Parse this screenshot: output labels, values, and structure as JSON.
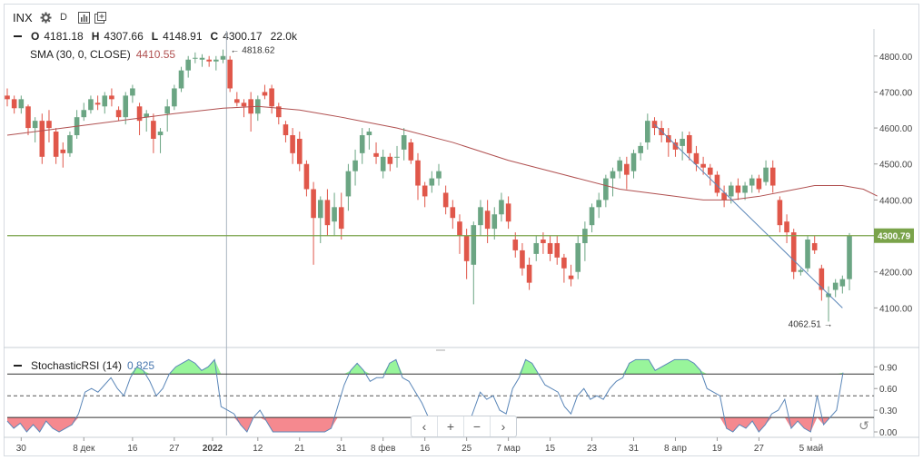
{
  "toolbar": {
    "symbol": "INX",
    "interval": "D",
    "settings_icon": "gear-icon",
    "indicators_icon": "bar-chart-icon",
    "compare_icon": "add-window-icon"
  },
  "ohlc": {
    "o_label": "O",
    "o_value": "4181.18",
    "h_label": "H",
    "h_value": "4307.66",
    "l_label": "L",
    "l_value": "4148.91",
    "c_label": "C",
    "c_value": "4300.17",
    "volume": "22.0k"
  },
  "sma_legend": {
    "label": "SMA (30, 0, CLOSE)",
    "value": "4410.55"
  },
  "stoch_legend": {
    "label": "StochasticRSI (14)",
    "value": "0.825"
  },
  "navigation": {
    "prev": "‹",
    "zoom_in": "+",
    "zoom_out": "−",
    "next": "›",
    "reset_icon": "reset-icon"
  },
  "colors": {
    "up": "#6ba583",
    "down": "#e0574a",
    "sma": "#b05050",
    "stoch_line": "#5a86b8",
    "overbought_fill": "#98f59b",
    "oversold_fill": "#f5898f",
    "price_line": "#7aa34a"
  },
  "chart_data": [
    {
      "type": "candlestick",
      "title": "INX",
      "x_tick_labels": [
        "30",
        "8 дек",
        "16",
        "27",
        "2022",
        "12",
        "21",
        "31",
        "8 фев",
        "16",
        "25",
        "7 мар",
        "15",
        "23",
        "31",
        "8 апр",
        "19",
        "27",
        "5 май"
      ],
      "y_tick_labels": [
        "4800.00",
        "4700.00",
        "4600.00",
        "4500.00",
        "4400.00",
        "4300.00",
        "4200.00",
        "4100.00"
      ],
      "ylim": [
        3990,
        4870
      ],
      "current_price_label": "4300.79",
      "annotations": [
        {
          "text": "4818.62",
          "kind": "high"
        },
        {
          "text": "4062.51",
          "kind": "low"
        }
      ],
      "candles": [
        [
          4690,
          4710,
          4660,
          4680
        ],
        [
          4680,
          4690,
          4640,
          4655
        ],
        [
          4655,
          4690,
          4640,
          4680
        ],
        [
          4660,
          4665,
          4580,
          4600
        ],
        [
          4600,
          4630,
          4560,
          4620
        ],
        [
          4620,
          4640,
          4500,
          4520
        ],
        [
          4620,
          4650,
          4560,
          4600
        ],
        [
          4590,
          4600,
          4500,
          4520
        ],
        [
          4540,
          4560,
          4490,
          4530
        ],
        [
          4530,
          4590,
          4520,
          4580
        ],
        [
          4580,
          4650,
          4570,
          4630
        ],
        [
          4630,
          4670,
          4620,
          4650
        ],
        [
          4650,
          4690,
          4640,
          4680
        ],
        [
          4670,
          4690,
          4650,
          4665
        ],
        [
          4660,
          4700,
          4640,
          4690
        ],
        [
          4690,
          4710,
          4660,
          4680
        ],
        [
          4650,
          4660,
          4620,
          4630
        ],
        [
          4630,
          4700,
          4610,
          4690
        ],
        [
          4690,
          4720,
          4670,
          4710
        ],
        [
          4660,
          4670,
          4580,
          4620
        ],
        [
          4630,
          4650,
          4590,
          4640
        ],
        [
          4620,
          4640,
          4530,
          4570
        ],
        [
          4580,
          4600,
          4530,
          4590
        ],
        [
          4640,
          4680,
          4590,
          4660
        ],
        [
          4660,
          4720,
          4650,
          4710
        ],
        [
          4710,
          4770,
          4700,
          4760
        ],
        [
          4760,
          4800,
          4740,
          4790
        ],
        [
          4795,
          4810,
          4780,
          4795
        ],
        [
          4790,
          4805,
          4770,
          4795
        ],
        [
          4790,
          4800,
          4770,
          4785
        ],
        [
          4785,
          4800,
          4760,
          4790
        ],
        [
          4790,
          4818,
          4780,
          4800
        ],
        [
          4790,
          4800,
          4700,
          4710
        ],
        [
          4680,
          4700,
          4660,
          4670
        ],
        [
          4670,
          4680,
          4630,
          4660
        ],
        [
          4680,
          4700,
          4590,
          4640
        ],
        [
          4640,
          4690,
          4620,
          4680
        ],
        [
          4700,
          4720,
          4680,
          4690
        ],
        [
          4710,
          4720,
          4640,
          4660
        ],
        [
          4660,
          4670,
          4610,
          4630
        ],
        [
          4610,
          4620,
          4560,
          4580
        ],
        [
          4580,
          4600,
          4500,
          4530
        ],
        [
          4570,
          4590,
          4480,
          4500
        ],
        [
          4500,
          4510,
          4410,
          4430
        ],
        [
          4430,
          4450,
          4220,
          4350
        ],
        [
          4350,
          4410,
          4280,
          4400
        ],
        [
          4400,
          4430,
          4300,
          4330
        ],
        [
          4340,
          4420,
          4300,
          4380
        ],
        [
          4380,
          4420,
          4290,
          4320
        ],
        [
          4410,
          4500,
          4370,
          4480
        ],
        [
          4480,
          4540,
          4440,
          4510
        ],
        [
          4530,
          4600,
          4500,
          4580
        ],
        [
          4580,
          4600,
          4540,
          4590
        ],
        [
          4530,
          4560,
          4500,
          4520
        ],
        [
          4480,
          4540,
          4460,
          4520
        ],
        [
          4520,
          4530,
          4480,
          4500
        ],
        [
          4520,
          4550,
          4490,
          4520
        ],
        [
          4540,
          4600,
          4510,
          4580
        ],
        [
          4560,
          4570,
          4500,
          4510
        ],
        [
          4510,
          4530,
          4400,
          4440
        ],
        [
          4440,
          4450,
          4380,
          4410
        ],
        [
          4440,
          4480,
          4420,
          4460
        ],
        [
          4460,
          4500,
          4440,
          4480
        ],
        [
          4420,
          4440,
          4360,
          4380
        ],
        [
          4380,
          4400,
          4320,
          4350
        ],
        [
          4340,
          4360,
          4250,
          4300
        ],
        [
          4300,
          4320,
          4180,
          4230
        ],
        [
          4220,
          4340,
          4110,
          4330
        ],
        [
          4330,
          4400,
          4300,
          4380
        ],
        [
          4370,
          4400,
          4280,
          4320
        ],
        [
          4320,
          4380,
          4290,
          4360
        ],
        [
          4360,
          4420,
          4340,
          4400
        ],
        [
          4390,
          4410,
          4320,
          4340
        ],
        [
          4290,
          4310,
          4240,
          4260
        ],
        [
          4260,
          4280,
          4190,
          4210
        ],
        [
          4220,
          4240,
          4150,
          4170
        ],
        [
          4250,
          4300,
          4230,
          4280
        ],
        [
          4290,
          4310,
          4250,
          4280
        ],
        [
          4280,
          4300,
          4230,
          4250
        ],
        [
          4280,
          4300,
          4220,
          4240
        ],
        [
          4240,
          4250,
          4170,
          4210
        ],
        [
          4190,
          4220,
          4160,
          4180
        ],
        [
          4200,
          4300,
          4180,
          4280
        ],
        [
          4280,
          4340,
          4230,
          4320
        ],
        [
          4330,
          4390,
          4310,
          4380
        ],
        [
          4380,
          4420,
          4350,
          4400
        ],
        [
          4400,
          4470,
          4380,
          4460
        ],
        [
          4460,
          4490,
          4410,
          4480
        ],
        [
          4480,
          4520,
          4460,
          4510
        ],
        [
          4500,
          4520,
          4430,
          4470
        ],
        [
          4480,
          4540,
          4460,
          4530
        ],
        [
          4530,
          4560,
          4510,
          4550
        ],
        [
          4560,
          4640,
          4540,
          4620
        ],
        [
          4620,
          4630,
          4580,
          4600
        ],
        [
          4600,
          4620,
          4560,
          4580
        ],
        [
          4580,
          4600,
          4520,
          4560
        ],
        [
          4560,
          4570,
          4520,
          4540
        ],
        [
          4550,
          4590,
          4510,
          4570
        ],
        [
          4580,
          4590,
          4510,
          4530
        ],
        [
          4530,
          4550,
          4480,
          4500
        ],
        [
          4500,
          4520,
          4470,
          4490
        ],
        [
          4490,
          4500,
          4440,
          4470
        ],
        [
          4470,
          4480,
          4410,
          4420
        ],
        [
          4420,
          4440,
          4380,
          4400
        ],
        [
          4410,
          4450,
          4390,
          4440
        ],
        [
          4440,
          4460,
          4400,
          4420
        ],
        [
          4420,
          4450,
          4400,
          4440
        ],
        [
          4440,
          4470,
          4420,
          4460
        ],
        [
          4460,
          4470,
          4420,
          4430
        ],
        [
          4450,
          4510,
          4440,
          4490
        ],
        [
          4490,
          4510,
          4420,
          4440
        ],
        [
          4400,
          4410,
          4310,
          4330
        ],
        [
          4340,
          4360,
          4280,
          4310
        ],
        [
          4310,
          4320,
          4180,
          4200
        ],
        [
          4200,
          4210,
          4190,
          4205
        ],
        [
          4210,
          4300,
          4200,
          4290
        ],
        [
          4280,
          4300,
          4250,
          4260
        ],
        [
          4210,
          4220,
          4120,
          4150
        ],
        [
          4130,
          4160,
          4062,
          4140
        ],
        [
          4150,
          4180,
          4130,
          4170
        ],
        [
          4160,
          4190,
          4140,
          4180
        ],
        [
          4180,
          4308,
          4149,
          4300
        ]
      ],
      "sma": [
        [
          0,
          4580
        ],
        [
          8,
          4600
        ],
        [
          16,
          4620
        ],
        [
          24,
          4640
        ],
        [
          31,
          4655
        ],
        [
          36,
          4660
        ],
        [
          42,
          4650
        ],
        [
          48,
          4630
        ],
        [
          56,
          4600
        ],
        [
          64,
          4560
        ],
        [
          72,
          4510
        ],
        [
          80,
          4470
        ],
        [
          88,
          4430
        ],
        [
          96,
          4410
        ],
        [
          100,
          4400
        ],
        [
          104,
          4400
        ],
        [
          108,
          4410
        ],
        [
          112,
          4425
        ],
        [
          116,
          4440
        ],
        [
          120,
          4440
        ],
        [
          123,
          4430
        ],
        [
          125,
          4411
        ]
      ]
    },
    {
      "type": "line",
      "title": "StochasticRSI (14)",
      "y_tick_labels": [
        "0.90",
        "0.60",
        "0.30",
        "0.00"
      ],
      "ylim": [
        -0.05,
        1.08
      ],
      "overbought": 0.8,
      "oversold": 0.2,
      "midline": 0.5,
      "values": [
        0.15,
        0.05,
        0.12,
        0.0,
        0.1,
        0.0,
        0.15,
        0.05,
        0.0,
        0.05,
        0.1,
        0.25,
        0.55,
        0.6,
        0.55,
        0.65,
        0.75,
        0.6,
        0.5,
        0.75,
        0.9,
        0.85,
        0.7,
        0.5,
        0.6,
        0.8,
        0.9,
        0.95,
        1.0,
        0.95,
        0.85,
        0.9,
        1.0,
        0.35,
        0.3,
        0.25,
        0.1,
        0.0,
        0.2,
        0.3,
        0.15,
        0.0,
        0.0,
        0.0,
        0.0,
        0.0,
        0.0,
        0.0,
        0.0,
        0.0,
        0.05,
        0.35,
        0.65,
        0.85,
        0.95,
        0.85,
        0.7,
        0.75,
        0.75,
        0.95,
        1.0,
        0.75,
        0.7,
        0.55,
        0.4,
        0.2,
        0.1,
        0.0,
        0.0,
        0.0,
        0.0,
        0.05,
        0.3,
        0.55,
        0.45,
        0.5,
        0.3,
        0.25,
        0.6,
        0.75,
        1.0,
        0.95,
        0.8,
        0.65,
        0.6,
        0.55,
        0.35,
        0.25,
        0.5,
        0.6,
        0.45,
        0.5,
        0.45,
        0.6,
        0.7,
        0.75,
        0.95,
        1.0,
        1.0,
        1.0,
        0.85,
        0.9,
        0.95,
        1.0,
        1.0,
        1.0,
        0.95,
        0.85,
        0.6,
        0.55,
        0.5,
        0.05,
        0.0,
        0.1,
        0.05,
        0.15,
        0.0,
        0.1,
        0.25,
        0.3,
        0.45,
        0.05,
        0.15,
        0.05,
        0.0,
        0.5,
        0.1,
        0.2,
        0.3,
        0.82
      ]
    }
  ]
}
